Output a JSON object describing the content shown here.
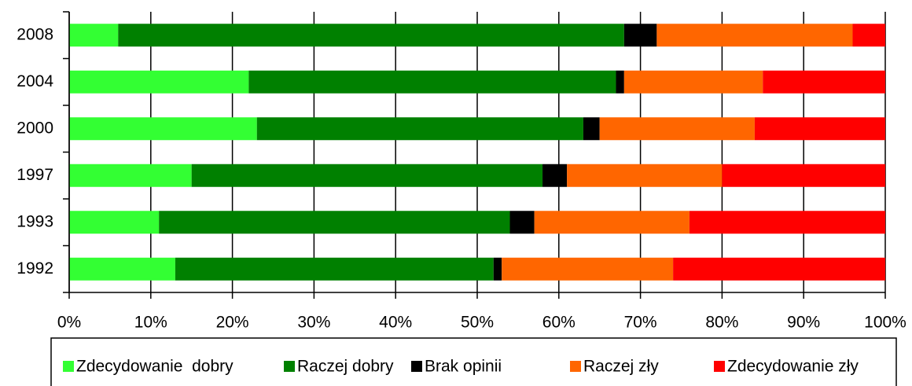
{
  "chart_data": {
    "type": "stacked-bar-horizontal",
    "categories": [
      "2008",
      "2004",
      "2000",
      "1997",
      "1993",
      "1992"
    ],
    "series": [
      {
        "name": "Zdecydowanie  dobry",
        "color": "#33ff33",
        "values": [
          6,
          22,
          23,
          15,
          11,
          13
        ]
      },
      {
        "name": "Raczej dobry",
        "color": "#008000",
        "values": [
          62,
          45,
          40,
          43,
          43,
          39
        ]
      },
      {
        "name": "Brak opinii",
        "color": "#000000",
        "values": [
          4,
          1,
          2,
          3,
          3,
          1
        ]
      },
      {
        "name": "Raczej zły",
        "color": "#ff6600",
        "values": [
          24,
          17,
          19,
          19,
          19,
          21
        ]
      },
      {
        "name": "Zdecydowanie zły",
        "color": "#ff0000",
        "values": [
          4,
          15,
          16,
          20,
          24,
          26
        ]
      }
    ],
    "xlim": [
      0,
      100
    ],
    "xticks": [
      {
        "value": 0,
        "label": "0%"
      },
      {
        "value": 10,
        "label": "10%"
      },
      {
        "value": 20,
        "label": "20%"
      },
      {
        "value": 30,
        "label": "30%"
      },
      {
        "value": 40,
        "label": "40%"
      },
      {
        "value": 50,
        "label": "50%"
      },
      {
        "value": 60,
        "label": "60%"
      },
      {
        "value": 70,
        "label": "70%"
      },
      {
        "value": 80,
        "label": "80%"
      },
      {
        "value": 90,
        "label": "90%"
      },
      {
        "value": 100,
        "label": "100%"
      }
    ],
    "grid": true,
    "legend": "bottom"
  }
}
